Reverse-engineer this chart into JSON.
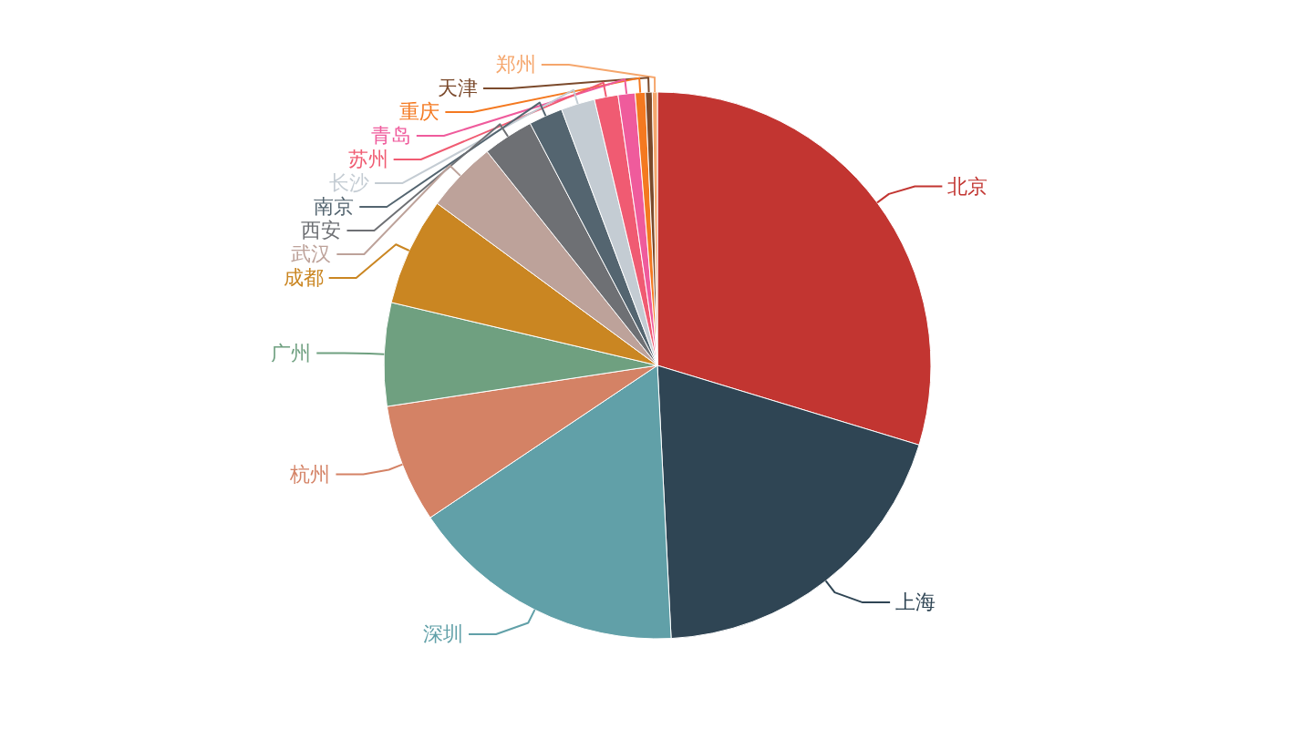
{
  "chart_data": {
    "type": "pie",
    "categories": [
      "北京",
      "上海",
      "深圳",
      "杭州",
      "广州",
      "成都",
      "武汉",
      "西安",
      "南京",
      "长沙",
      "苏州",
      "青岛",
      "重庆",
      "天津",
      "郑州"
    ],
    "values": [
      29.7,
      19.5,
      16.4,
      7.0,
      6.1,
      6.4,
      4.2,
      3.0,
      2.0,
      2.0,
      1.4,
      1.0,
      0.6,
      0.4,
      0.3
    ],
    "colors": [
      "#c23531",
      "#2f4554",
      "#61a0a8",
      "#d48265",
      "#6fa080",
      "#ca8622",
      "#bda29a",
      "#6e7074",
      "#546570",
      "#c4ccd3",
      "#f05b72",
      "#ef5b9c",
      "#f47920",
      "#7b4a2c",
      "#f5a66c"
    ]
  }
}
